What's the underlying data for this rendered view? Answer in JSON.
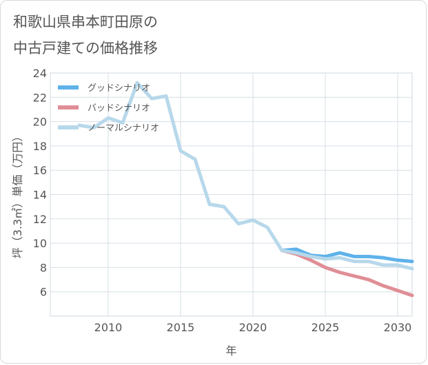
{
  "title_line1": "和歌山県串本町田原の",
  "title_line2": "中古戸建ての価格推移",
  "chart_data": {
    "type": "line",
    "title": "和歌山県串本町田原の中古戸建ての価格推移",
    "xlabel": "年",
    "ylabel": "坪（3.3㎡）単価（万円）",
    "xlim": [
      2006,
      2031
    ],
    "ylim": [
      4,
      24
    ],
    "xticks": [
      2010,
      2015,
      2020,
      2025,
      2030
    ],
    "yticks": [
      6,
      8,
      10,
      12,
      14,
      16,
      18,
      20,
      22,
      24
    ],
    "grid": true,
    "legend_position": "top-left",
    "series": [
      {
        "name": "グッドシナリオ",
        "color": "#5fb2ea",
        "x": [
          2022,
          2023,
          2024,
          2025,
          2026,
          2027,
          2028,
          2029,
          2030,
          2031
        ],
        "y": [
          9.4,
          9.5,
          9.0,
          8.9,
          9.2,
          8.9,
          8.9,
          8.8,
          8.6,
          8.5
        ]
      },
      {
        "name": "バッドシナリオ",
        "color": "#e08e96",
        "x": [
          2022,
          2023,
          2024,
          2025,
          2026,
          2027,
          2028,
          2029,
          2030,
          2031
        ],
        "y": [
          9.4,
          9.1,
          8.6,
          8.0,
          7.6,
          7.3,
          7.0,
          6.5,
          6.1,
          5.7
        ]
      },
      {
        "name": "ノーマルシナリオ",
        "color": "#b7d8ea",
        "x": [
          2008,
          2009,
          2010,
          2011,
          2012,
          2013,
          2014,
          2015,
          2016,
          2017,
          2018,
          2019,
          2020,
          2021,
          2022,
          2023,
          2024,
          2025,
          2026,
          2027,
          2028,
          2029,
          2030,
          2031
        ],
        "y": [
          19.7,
          19.5,
          20.3,
          19.9,
          23.2,
          21.9,
          22.1,
          17.6,
          16.9,
          13.2,
          13.0,
          11.6,
          11.9,
          11.3,
          9.4,
          9.2,
          8.9,
          8.7,
          8.8,
          8.5,
          8.5,
          8.2,
          8.2,
          7.9
        ]
      }
    ]
  }
}
